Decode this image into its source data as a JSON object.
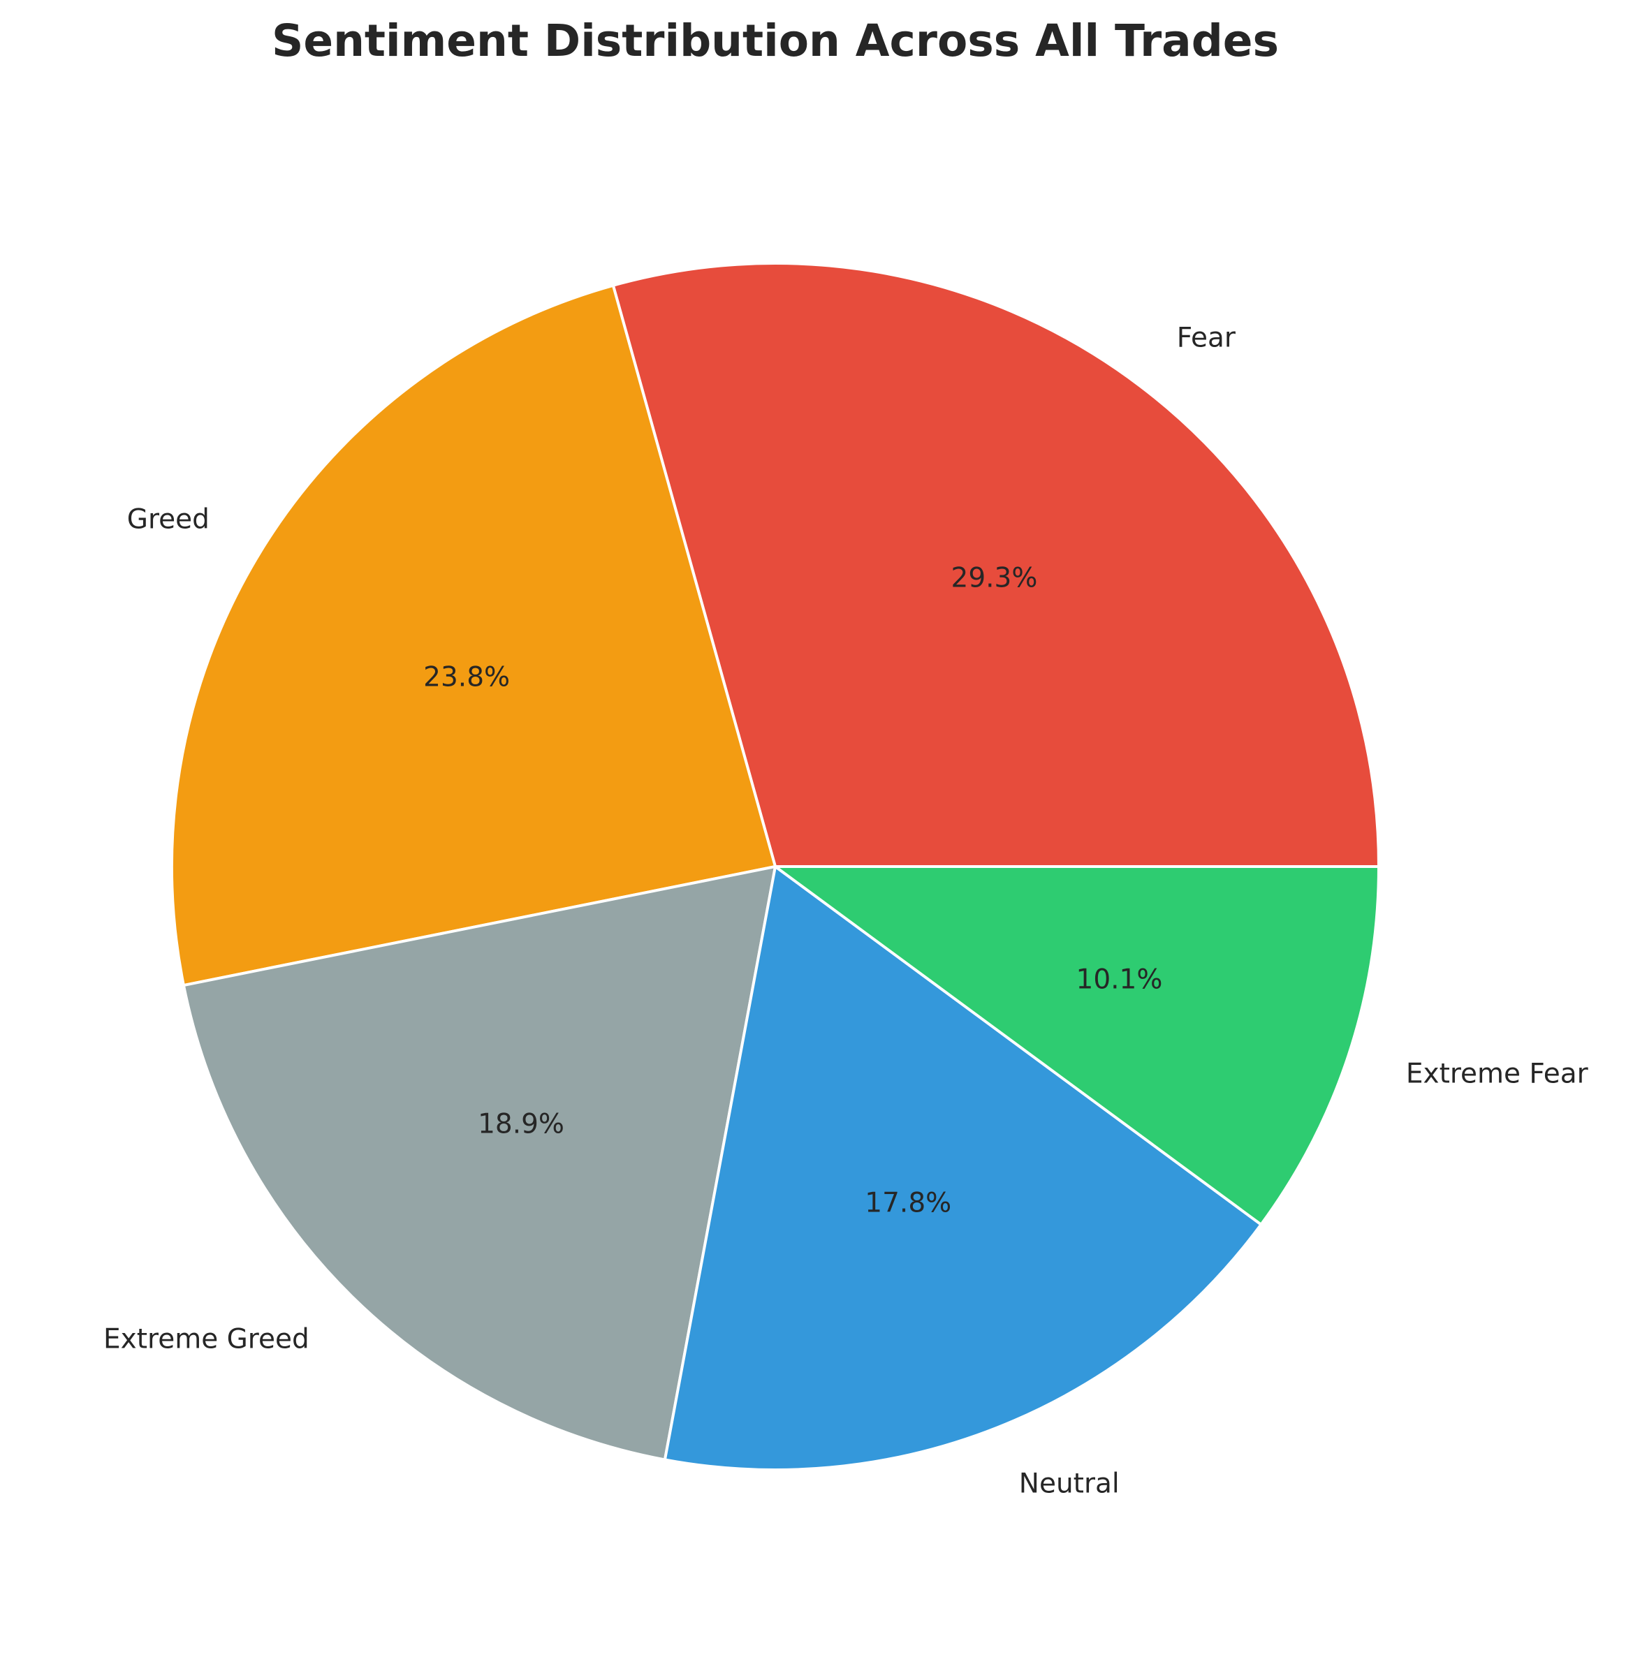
{
  "chart_data": {
    "type": "pie",
    "title": "Sentiment Distribution Across All Trades",
    "slices": [
      {
        "label": "Fear",
        "value": 29.3,
        "pct_label": "29.3%",
        "color": "#e74c3c"
      },
      {
        "label": "Greed",
        "value": 23.8,
        "pct_label": "23.8%",
        "color": "#f39c12"
      },
      {
        "label": "Extreme Greed",
        "value": 18.9,
        "pct_label": "18.9%",
        "color": "#95a5a6"
      },
      {
        "label": "Neutral",
        "value": 17.8,
        "pct_label": "17.8%",
        "color": "#3498db"
      },
      {
        "label": "Extreme Fear",
        "value": 10.1,
        "pct_label": "10.1%",
        "color": "#2ecc71"
      }
    ],
    "start_angle_deg": 0,
    "direction": "counterclockwise",
    "legend": "none"
  }
}
